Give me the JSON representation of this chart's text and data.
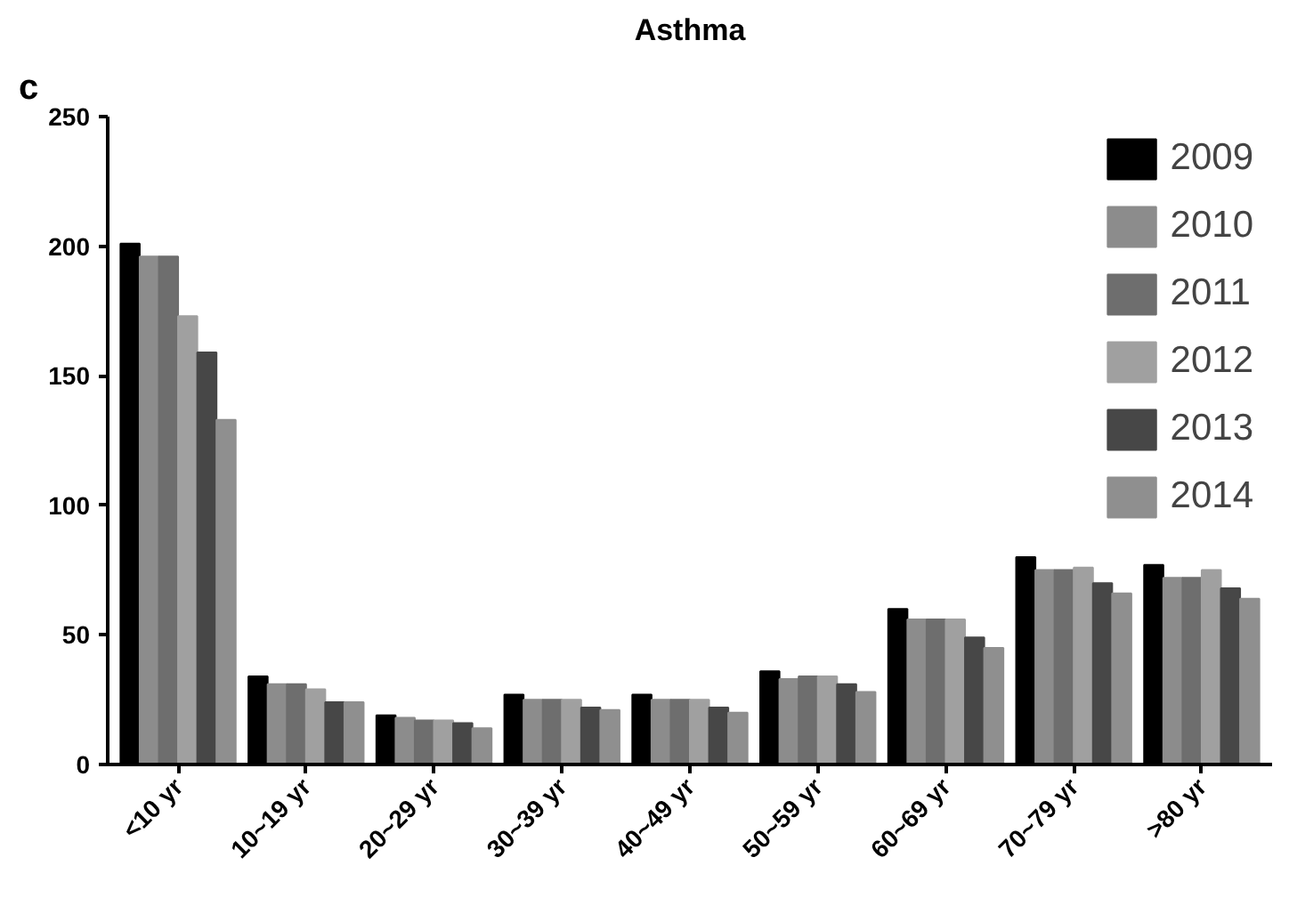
{
  "chart_data": {
    "type": "bar",
    "title": "Asthma",
    "annotations": [
      "c"
    ],
    "categories": [
      "<10 yr",
      "10~19 yr",
      "20~29 yr",
      "30~39 yr",
      "40~49 yr",
      "50~59 yr",
      "60~69 yr",
      "70~79 yr",
      ">80 yr"
    ],
    "series": [
      {
        "name": "2009",
        "color": "#000000",
        "values": [
          201,
          34,
          19,
          27,
          27,
          36,
          60,
          80,
          77
        ]
      },
      {
        "name": "2010",
        "color": "#8c8c8c",
        "values": [
          196,
          31,
          18,
          25,
          25,
          33,
          56,
          75,
          72
        ]
      },
      {
        "name": "2011",
        "color": "#6e6e6e",
        "values": [
          196,
          31,
          17,
          25,
          25,
          34,
          56,
          75,
          72
        ]
      },
      {
        "name": "2012",
        "color": "#a0a0a0",
        "values": [
          173,
          29,
          17,
          25,
          25,
          34,
          56,
          76,
          75
        ]
      },
      {
        "name": "2013",
        "color": "#474747",
        "values": [
          159,
          24,
          16,
          22,
          22,
          31,
          49,
          70,
          68
        ]
      },
      {
        "name": "2014",
        "color": "#8f8f8f",
        "values": [
          133,
          24,
          14,
          21,
          20,
          28,
          45,
          66,
          64
        ]
      }
    ],
    "ylim": [
      0,
      250
    ],
    "yticks": [
      0,
      50,
      100,
      150,
      200,
      250
    ],
    "grid": false,
    "legend": "top right"
  }
}
